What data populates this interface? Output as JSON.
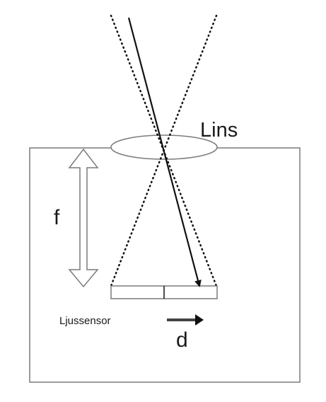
{
  "labels": {
    "lens": "Lins",
    "focal_length": "f",
    "sensor": "Ljussensor",
    "displacement": "d"
  },
  "colors": {
    "outline": "#7a7a7a",
    "ray": "#111111",
    "text": "#1a1a1a",
    "background": "#ffffff"
  }
}
